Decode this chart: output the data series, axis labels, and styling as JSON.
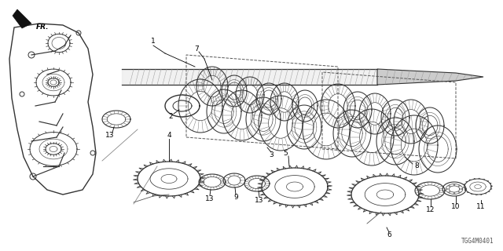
{
  "bg_color": "#ffffff",
  "diagram_code": "TGG4M0401",
  "figsize": [
    6.4,
    3.2
  ],
  "dpi": 100,
  "line_color": "#333333",
  "dark_color": "#111111",
  "mid_color": "#555555",
  "light_color": "#888888"
}
